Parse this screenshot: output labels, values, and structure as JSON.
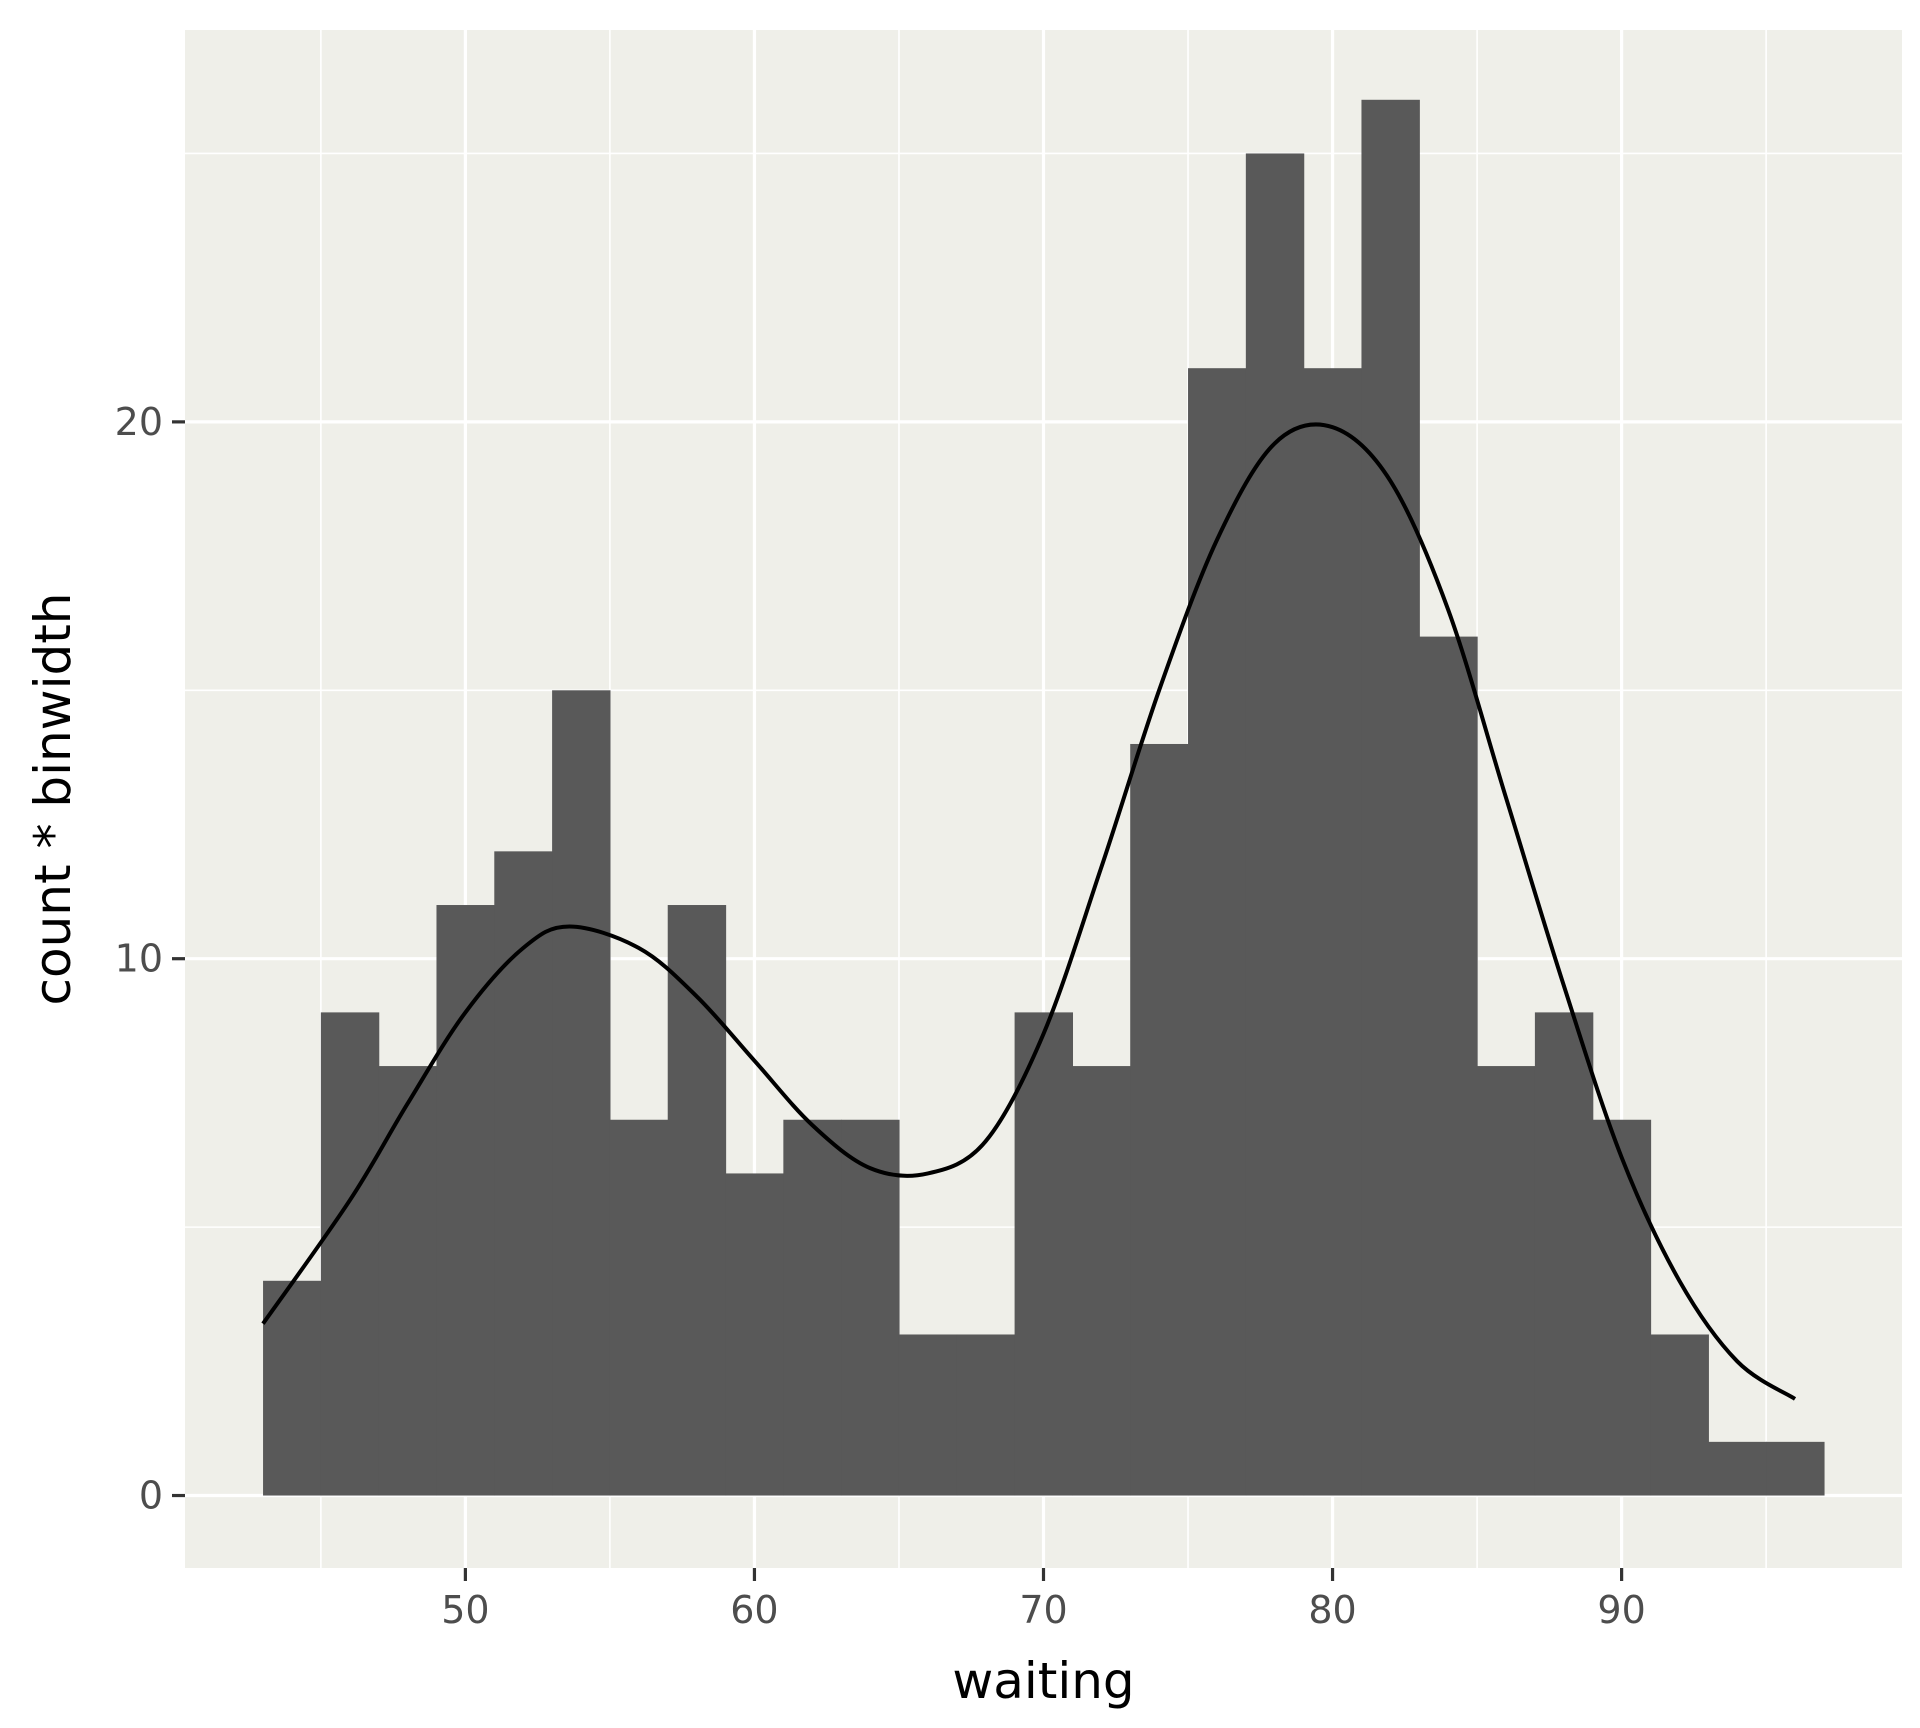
{
  "chart_data": {
    "type": "bar",
    "title": "",
    "xlabel": "waiting",
    "ylabel": "count * binwidth",
    "xlim": [
      40.3,
      99.7
    ],
    "ylim": [
      -1.35,
      27.3
    ],
    "x_ticks": [
      50,
      60,
      70,
      80,
      90
    ],
    "y_ticks": [
      0,
      10,
      20
    ],
    "x_tick_labels": [
      "50",
      "60",
      "70",
      "80",
      "90"
    ],
    "y_tick_labels": [
      "0",
      "10",
      "20"
    ],
    "grid": true,
    "legend": "none",
    "binwidth": 2,
    "bins": [
      {
        "x": 44,
        "count": 4
      },
      {
        "x": 46,
        "count": 9
      },
      {
        "x": 48,
        "count": 8
      },
      {
        "x": 50,
        "count": 11
      },
      {
        "x": 52,
        "count": 12
      },
      {
        "x": 54,
        "count": 15
      },
      {
        "x": 56,
        "count": 7
      },
      {
        "x": 58,
        "count": 11
      },
      {
        "x": 60,
        "count": 6
      },
      {
        "x": 62,
        "count": 7
      },
      {
        "x": 64,
        "count": 7
      },
      {
        "x": 66,
        "count": 3
      },
      {
        "x": 68,
        "count": 3
      },
      {
        "x": 70,
        "count": 9
      },
      {
        "x": 72,
        "count": 8
      },
      {
        "x": 74,
        "count": 14
      },
      {
        "x": 76,
        "count": 21
      },
      {
        "x": 78,
        "count": 25
      },
      {
        "x": 80,
        "count": 21
      },
      {
        "x": 82,
        "count": 26
      },
      {
        "x": 84,
        "count": 16
      },
      {
        "x": 86,
        "count": 8
      },
      {
        "x": 88,
        "count": 9
      },
      {
        "x": 90,
        "count": 7
      },
      {
        "x": 92,
        "count": 3
      },
      {
        "x": 94,
        "count": 1
      },
      {
        "x": 96,
        "count": 1
      }
    ],
    "density_curve": [
      {
        "x": 43,
        "y": 3.2
      },
      {
        "x": 46,
        "y": 5.5
      },
      {
        "x": 48,
        "y": 7.3
      },
      {
        "x": 50,
        "y": 9.0
      },
      {
        "x": 52,
        "y": 10.2
      },
      {
        "x": 53.6,
        "y": 10.6
      },
      {
        "x": 56,
        "y": 10.2
      },
      {
        "x": 58,
        "y": 9.3
      },
      {
        "x": 60,
        "y": 8.1
      },
      {
        "x": 62,
        "y": 6.9
      },
      {
        "x": 64,
        "y": 6.1
      },
      {
        "x": 66,
        "y": 6.0
      },
      {
        "x": 68,
        "y": 6.6
      },
      {
        "x": 70,
        "y": 8.6
      },
      {
        "x": 72,
        "y": 11.7
      },
      {
        "x": 74,
        "y": 15.0
      },
      {
        "x": 76,
        "y": 17.8
      },
      {
        "x": 78,
        "y": 19.6
      },
      {
        "x": 80,
        "y": 19.9
      },
      {
        "x": 82,
        "y": 18.9
      },
      {
        "x": 84,
        "y": 16.5
      },
      {
        "x": 86,
        "y": 13.0
      },
      {
        "x": 88,
        "y": 9.5
      },
      {
        "x": 90,
        "y": 6.3
      },
      {
        "x": 92,
        "y": 4.0
      },
      {
        "x": 94,
        "y": 2.5
      },
      {
        "x": 96,
        "y": 1.8
      }
    ]
  },
  "colors": {
    "panel_background": "#efefe9",
    "grid_major": "#ffffff",
    "grid_minor": "#ffffff",
    "bar_fill": "#595959",
    "density_line": "#000000",
    "tick_text": "#4d4d4d",
    "tick_mark": "#333333",
    "axis_title": "#000000"
  }
}
